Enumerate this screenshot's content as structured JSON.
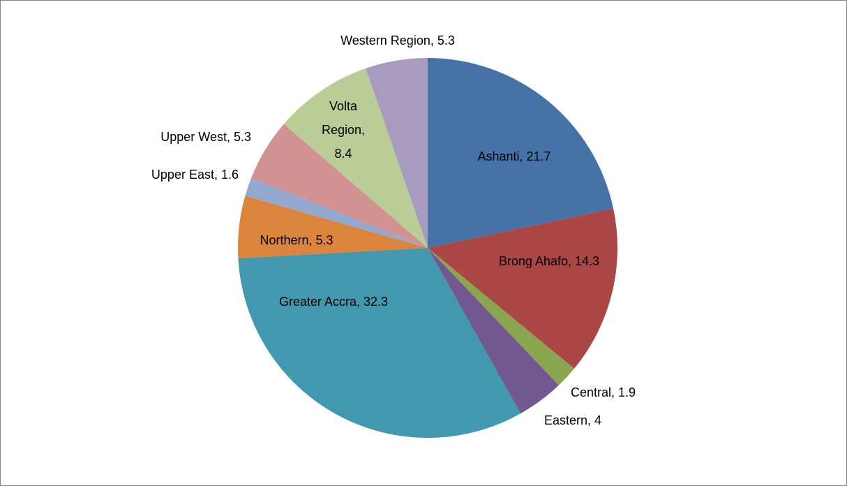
{
  "chart_data": {
    "type": "pie",
    "values": [
      21.7,
      14.3,
      1.9,
      4,
      32.3,
      5.3,
      1.6,
      5.3,
      8.4,
      5.3
    ],
    "value_labels": [
      "Ashanti, 21.7",
      "Brong Ahafo, 14.3",
      "Central, 1.9",
      "Eastern, 4",
      "Greater Accra, 32.3",
      "Northern, 5.3",
      "Upper East, 1.6",
      "Upper West, 5.3",
      "Volta Region, 8.4",
      "Western Region, 5.3"
    ],
    "colors": [
      "#4572a7",
      "#aa4643",
      "#89a54e",
      "#71588f",
      "#4198af",
      "#db843d",
      "#93a9cf",
      "#d19392",
      "#b9cd96",
      "#a99bbd"
    ]
  }
}
